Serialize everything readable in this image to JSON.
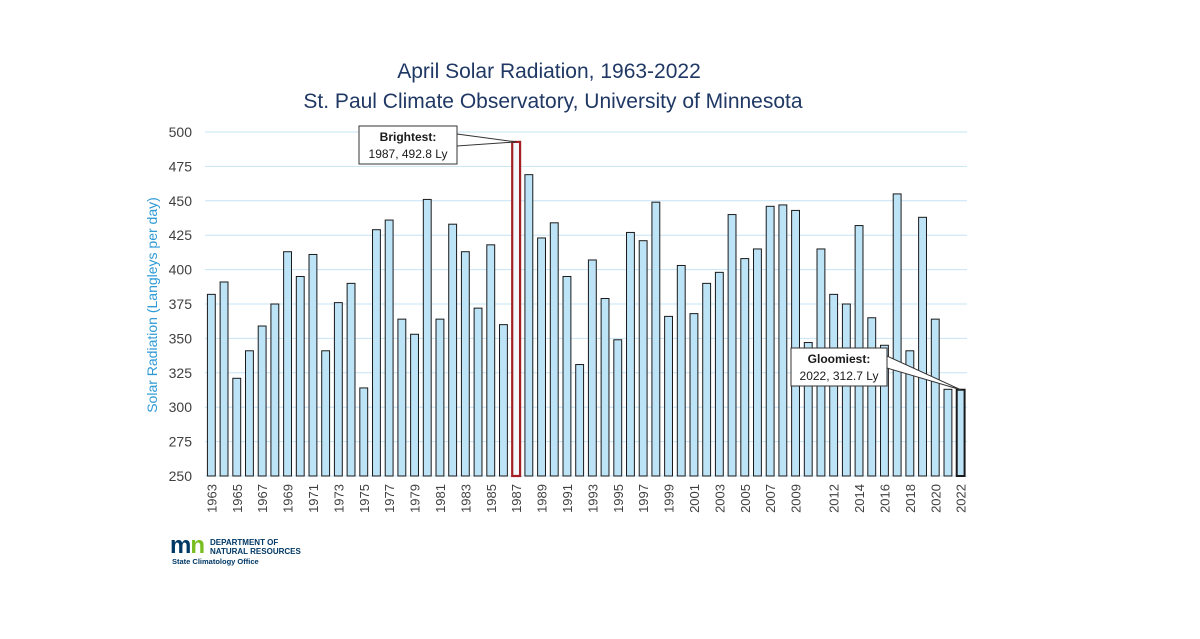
{
  "chart_data": {
    "type": "bar",
    "title": "April Solar Radiation, 1963-2022",
    "subtitle": "St. Paul Climate Observatory, University of Minnesota",
    "xlabel": "",
    "ylabel": "Solar Radiation (Langleys per day)",
    "ylim": [
      250,
      500
    ],
    "yticks": [
      250,
      275,
      300,
      325,
      350,
      375,
      400,
      425,
      450,
      475,
      500
    ],
    "grid": true,
    "legend": "none",
    "bar_color": "#bde3f7",
    "bar_edge": "#1a1a1a",
    "highlight_color": "#a31f24",
    "gridline_color": "#c5e4f5",
    "x": [
      1963,
      1964,
      1965,
      1966,
      1967,
      1968,
      1969,
      1970,
      1971,
      1972,
      1973,
      1974,
      1975,
      1976,
      1977,
      1978,
      1979,
      1980,
      1981,
      1982,
      1983,
      1984,
      1985,
      1986,
      1987,
      1988,
      1989,
      1990,
      1991,
      1992,
      1993,
      1994,
      1995,
      1996,
      1997,
      1998,
      1999,
      2000,
      2001,
      2002,
      2003,
      2004,
      2005,
      2006,
      2007,
      2008,
      2009,
      2010,
      2011,
      2012,
      2013,
      2014,
      2015,
      2016,
      2017,
      2018,
      2019,
      2020,
      2021,
      2022
    ],
    "xtick_labels": [
      "1963",
      "1965",
      "1967",
      "1969",
      "1971",
      "1973",
      "1975",
      "1977",
      "1979",
      "1981",
      "1983",
      "1985",
      "1987",
      "1989",
      "1991",
      "1993",
      "1995",
      "1997",
      "1999",
      "2001",
      "2003",
      "2005",
      "2007",
      "2009",
      "2012",
      "2014",
      "2016",
      "2018",
      "2020",
      "2022"
    ],
    "values": [
      382,
      391,
      321,
      341,
      359,
      375,
      413,
      395,
      411,
      341,
      376,
      390,
      314,
      429,
      436,
      364,
      353,
      451,
      364,
      433,
      413,
      372,
      418,
      360,
      492.8,
      469,
      423,
      434,
      395,
      331,
      407,
      379,
      349,
      427,
      421,
      449,
      366,
      403,
      368,
      390,
      398,
      440,
      408,
      415,
      446,
      447,
      443,
      347,
      415,
      382,
      375,
      432,
      365,
      345,
      455,
      341,
      438,
      364,
      313,
      312.7
    ],
    "annotations": [
      {
        "title": "Brightest:",
        "text": "1987, 492.8 Ly",
        "year": 1987,
        "value": 492.8
      },
      {
        "title": "Gloomiest:",
        "text": "2022, 312.7 Ly",
        "year": 2022,
        "value": 312.7
      }
    ]
  },
  "logo": {
    "mark_m": "m",
    "mark_n": "n",
    "dept_line1": "DEPARTMENT OF",
    "dept_line2": "NATURAL RESOURCES",
    "office": "State Climatology Office"
  }
}
